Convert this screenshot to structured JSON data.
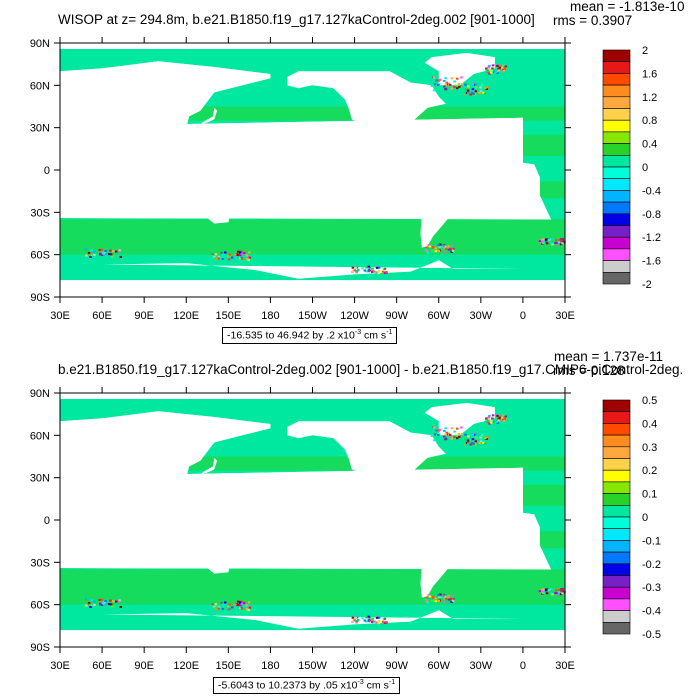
{
  "chart_data": [
    {
      "type": "heatmap",
      "title": "WISOP at z= 294.8m, b.e21.B1850.f19_g17.127kaControl-2deg.002 [901-1000]",
      "stats": {
        "mean": "mean = -1.813e-10",
        "rms": "rms = 0.3907"
      },
      "x_ticks": [
        "30E",
        "60E",
        "90E",
        "120E",
        "150E",
        "180",
        "150W",
        "120W",
        "90W",
        "60W",
        "30W",
        "0",
        "30E"
      ],
      "y_ticks": [
        "90N",
        "60N",
        "30N",
        "0",
        "30S",
        "60S",
        "90S"
      ],
      "xlim": [
        30,
        390
      ],
      "ylim": [
        -90,
        90
      ],
      "range_label": "-16.535 to 46.942 by .2 x10",
      "range_exp": "-3",
      "range_units": " cm s",
      "range_units_exp": "-1",
      "colorbar": {
        "labels": [
          "2",
          "1.6",
          "1.2",
          "0.8",
          "0.4",
          "0",
          "-0.4",
          "-0.8",
          "-1.2",
          "-1.6",
          "-2"
        ],
        "colors": [
          "#a00000",
          "#e81818",
          "#ff4a00",
          "#ff8c1e",
          "#ffa840",
          "#ffd24a",
          "#ffff00",
          "#86e800",
          "#28d228",
          "#00e8a0",
          "#00ffd8",
          "#00e8ff",
          "#00b4ff",
          "#0078ff",
          "#0000e8",
          "#7820c8",
          "#c800d2",
          "#ff50ff",
          "#cccccc",
          "#666666"
        ]
      },
      "dominant_value": "near 0",
      "notable_regions": [
        "North Atlantic / Labrador Sea",
        "Southern Ocean",
        "Arctic coast"
      ]
    },
    {
      "type": "heatmap",
      "title": "b.e21.B1850.f19_g17.127kaControl-2deg.002 [901-1000] - b.e21.B1850.f19_g17.CMIP6-piControl-2deg.",
      "stats": {
        "mean": "mean = 1.737e-11",
        "rms": "rms = 0.128"
      },
      "x_ticks": [
        "30E",
        "60E",
        "90E",
        "120E",
        "150E",
        "180",
        "150W",
        "120W",
        "90W",
        "60W",
        "30W",
        "0",
        "30E"
      ],
      "y_ticks": [
        "90N",
        "60N",
        "30N",
        "0",
        "30S",
        "60S",
        "90S"
      ],
      "xlim": [
        30,
        390
      ],
      "ylim": [
        -90,
        90
      ],
      "range_label": "-5.6043 to 10.2373 by .05 x10",
      "range_exp": "-3",
      "range_units": " cm s",
      "range_units_exp": "-1",
      "colorbar": {
        "labels": [
          "0.5",
          "0.4",
          "0.3",
          "0.2",
          "0.1",
          "0",
          "-0.1",
          "-0.2",
          "-0.3",
          "-0.4",
          "-0.5"
        ],
        "colors": [
          "#a00000",
          "#e81818",
          "#ff4a00",
          "#ff8c1e",
          "#ffa840",
          "#ffd24a",
          "#ffff00",
          "#86e800",
          "#28d228",
          "#00e8a0",
          "#00ffd8",
          "#00e8ff",
          "#00b4ff",
          "#0078ff",
          "#0000e8",
          "#7820c8",
          "#c800d2",
          "#ff50ff",
          "#cccccc",
          "#666666"
        ]
      },
      "dominant_value": "near 0",
      "notable_regions": [
        "North Atlantic / Labrador Sea",
        "Southern Ocean",
        "Arctic coast"
      ]
    }
  ]
}
